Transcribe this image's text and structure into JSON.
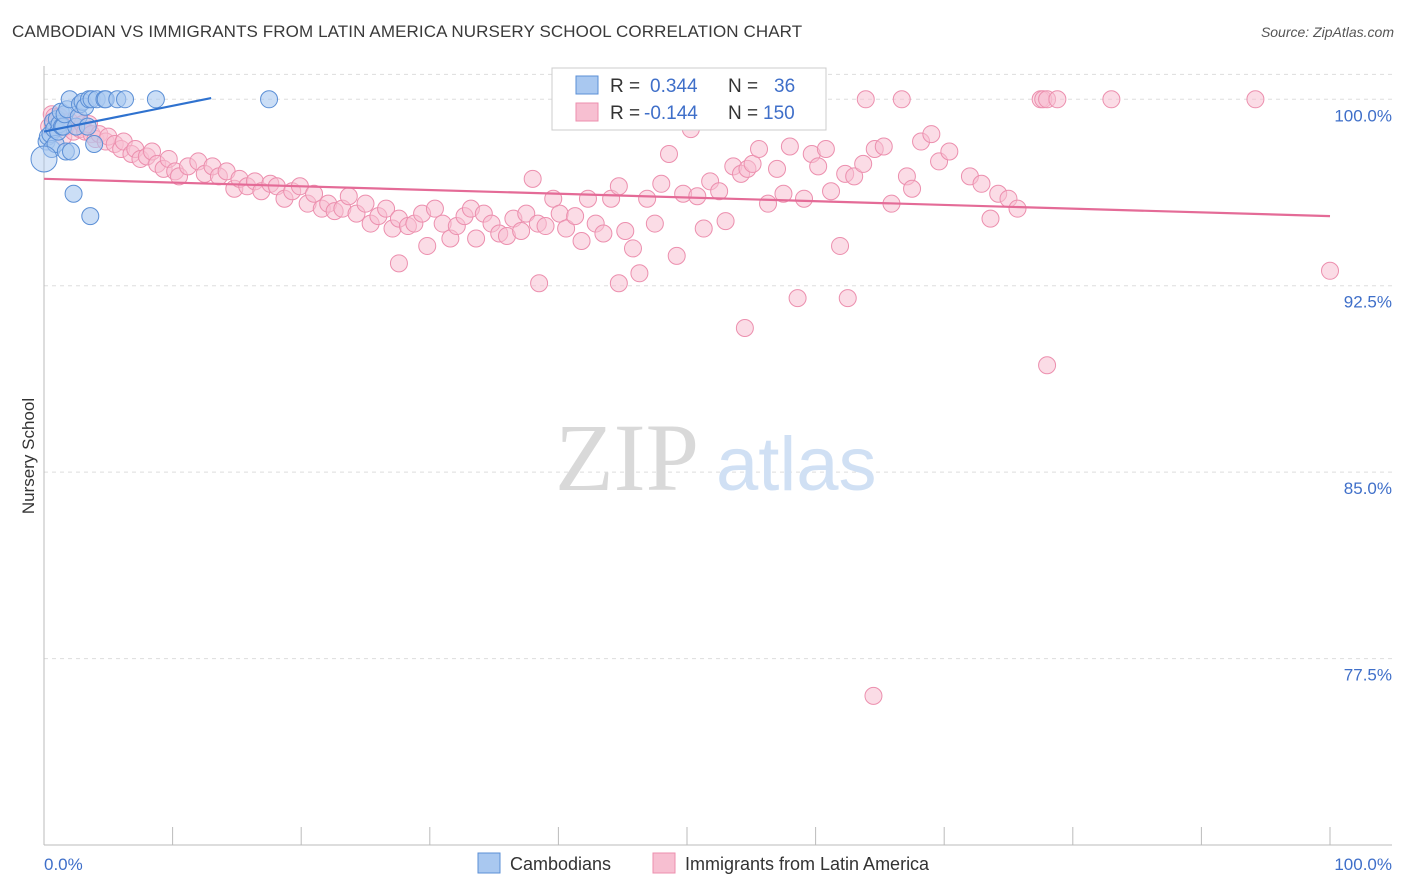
{
  "title": "CAMBODIAN VS IMMIGRANTS FROM LATIN AMERICA NURSERY SCHOOL CORRELATION CHART",
  "source": "Source: ZipAtlas.com",
  "watermark": {
    "zip": "ZIP",
    "atlas": "atlas"
  },
  "colors": {
    "blue_fill": "#a9c8f0",
    "blue_stroke": "#5b8fd6",
    "blue_line": "#2f72cf",
    "pink_fill": "#f7bfd1",
    "pink_stroke": "#ec8fae",
    "pink_line": "#e46b97",
    "tick_text": "#3f6fc9",
    "grid": "#dddddd"
  },
  "legend_box": {
    "rows": [
      {
        "r_label": "R =",
        "r_value": "0.344",
        "n_label": "N =",
        "n_value": "36"
      },
      {
        "r_label": "R =",
        "r_value": "-0.144",
        "n_label": "N =",
        "n_value": "150"
      }
    ]
  },
  "chart_data": {
    "type": "scatter",
    "title": "CAMBODIAN VS IMMIGRANTS FROM LATIN AMERICA NURSERY SCHOOL CORRELATION CHART",
    "xlabel": "",
    "ylabel": "Nursery School",
    "xlim": [
      0,
      100
    ],
    "ylim": [
      70.0,
      101.5
    ],
    "x_tick_labels": [
      "0.0%",
      "100.0%"
    ],
    "y_ticks": [
      100.0,
      92.5,
      85.0,
      77.5
    ],
    "y_tick_labels": [
      "100.0%",
      "92.5%",
      "85.0%",
      "77.5%"
    ],
    "grid": true,
    "legend": [
      "Cambodians",
      "Immigrants from Latin America"
    ],
    "series": [
      {
        "name": "Cambodians",
        "R": 0.344,
        "N": 36,
        "trend": {
          "x": [
            0,
            13
          ],
          "y": [
            98.7,
            100.05
          ]
        },
        "points": [
          [
            0.2,
            98.3
          ],
          [
            0.3,
            98.5
          ],
          [
            0.5,
            98.6
          ],
          [
            0.6,
            98.0
          ],
          [
            0.7,
            99.1
          ],
          [
            0.8,
            98.8
          ],
          [
            0.9,
            98.2
          ],
          [
            1.0,
            99.2
          ],
          [
            1.1,
            98.7
          ],
          [
            1.2,
            99.0
          ],
          [
            1.3,
            99.5
          ],
          [
            1.4,
            98.9
          ],
          [
            1.5,
            98.9
          ],
          [
            1.6,
            99.4
          ],
          [
            1.7,
            97.9
          ],
          [
            1.8,
            99.6
          ],
          [
            2.0,
            100.0
          ],
          [
            2.1,
            97.9
          ],
          [
            2.3,
            96.2
          ],
          [
            2.5,
            98.9
          ],
          [
            2.7,
            99.3
          ],
          [
            2.8,
            99.8
          ],
          [
            3.0,
            99.9
          ],
          [
            3.2,
            99.7
          ],
          [
            3.4,
            98.9
          ],
          [
            3.5,
            100.0
          ],
          [
            3.6,
            95.3
          ],
          [
            3.7,
            100.0
          ],
          [
            3.9,
            98.2
          ],
          [
            4.1,
            100.0
          ],
          [
            4.7,
            100.0
          ],
          [
            4.8,
            100.0
          ],
          [
            5.7,
            100.0
          ],
          [
            6.3,
            100.0
          ],
          [
            8.7,
            100.0
          ],
          [
            17.5,
            100.0
          ]
        ]
      },
      {
        "name": "Immigrants from Latin America",
        "R": -0.144,
        "N": 150,
        "trend": {
          "x": [
            0,
            100
          ],
          "y": [
            96.8,
            95.3
          ]
        },
        "points": [
          [
            0.4,
            98.9
          ],
          [
            0.6,
            99.4
          ],
          [
            0.7,
            99.0
          ],
          [
            0.8,
            99.3
          ],
          [
            1.0,
            98.8
          ],
          [
            1.2,
            99.3
          ],
          [
            1.4,
            99.1
          ],
          [
            1.5,
            98.5
          ],
          [
            1.7,
            98.9
          ],
          [
            2.0,
            99.1
          ],
          [
            2.3,
            98.7
          ],
          [
            2.5,
            99.2
          ],
          [
            2.8,
            98.8
          ],
          [
            3.0,
            99.0
          ],
          [
            3.2,
            98.7
          ],
          [
            3.5,
            99.0
          ],
          [
            3.7,
            98.6
          ],
          [
            4.0,
            98.4
          ],
          [
            4.3,
            98.6
          ],
          [
            4.8,
            98.3
          ],
          [
            5.0,
            98.5
          ],
          [
            5.5,
            98.2
          ],
          [
            6.0,
            98.0
          ],
          [
            6.2,
            98.3
          ],
          [
            6.8,
            97.8
          ],
          [
            7.1,
            98.0
          ],
          [
            7.5,
            97.6
          ],
          [
            8.0,
            97.7
          ],
          [
            8.4,
            97.9
          ],
          [
            8.8,
            97.4
          ],
          [
            9.3,
            97.2
          ],
          [
            9.7,
            97.6
          ],
          [
            10.2,
            97.1
          ],
          [
            10.5,
            96.9
          ],
          [
            11.2,
            97.3
          ],
          [
            12.0,
            97.5
          ],
          [
            12.5,
            97.0
          ],
          [
            13.1,
            97.3
          ],
          [
            13.6,
            96.9
          ],
          [
            14.2,
            97.1
          ],
          [
            14.8,
            96.4
          ],
          [
            15.2,
            96.8
          ],
          [
            15.8,
            96.5
          ],
          [
            16.4,
            96.7
          ],
          [
            16.9,
            96.3
          ],
          [
            17.6,
            96.6
          ],
          [
            18.1,
            96.5
          ],
          [
            18.7,
            96.0
          ],
          [
            19.3,
            96.3
          ],
          [
            19.9,
            96.5
          ],
          [
            20.5,
            95.8
          ],
          [
            21.0,
            96.2
          ],
          [
            21.6,
            95.6
          ],
          [
            22.1,
            95.8
          ],
          [
            22.6,
            95.5
          ],
          [
            23.2,
            95.6
          ],
          [
            23.7,
            96.1
          ],
          [
            24.3,
            95.4
          ],
          [
            25.0,
            95.8
          ],
          [
            25.4,
            95.0
          ],
          [
            26.0,
            95.3
          ],
          [
            26.6,
            95.6
          ],
          [
            27.1,
            94.8
          ],
          [
            27.6,
            95.2
          ],
          [
            28.3,
            94.9
          ],
          [
            28.8,
            95.0
          ],
          [
            29.4,
            95.4
          ],
          [
            29.8,
            94.1
          ],
          [
            30.4,
            95.6
          ],
          [
            31.0,
            95.0
          ],
          [
            31.6,
            94.4
          ],
          [
            32.1,
            94.9
          ],
          [
            32.7,
            95.3
          ],
          [
            33.2,
            95.6
          ],
          [
            33.6,
            94.4
          ],
          [
            34.2,
            95.4
          ],
          [
            34.8,
            95.0
          ],
          [
            35.4,
            94.6
          ],
          [
            36.0,
            94.5
          ],
          [
            36.5,
            95.2
          ],
          [
            37.1,
            94.7
          ],
          [
            37.5,
            95.4
          ],
          [
            38.0,
            96.8
          ],
          [
            38.4,
            95.0
          ],
          [
            39.0,
            94.9
          ],
          [
            39.6,
            96.0
          ],
          [
            40.1,
            95.4
          ],
          [
            40.6,
            94.8
          ],
          [
            41.3,
            95.3
          ],
          [
            41.8,
            94.3
          ],
          [
            42.3,
            96.0
          ],
          [
            42.9,
            95.0
          ],
          [
            43.5,
            94.6
          ],
          [
            44.1,
            96.0
          ],
          [
            44.7,
            96.5
          ],
          [
            45.2,
            94.7
          ],
          [
            45.8,
            94.0
          ],
          [
            46.3,
            93.0
          ],
          [
            46.9,
            96.0
          ],
          [
            47.5,
            95.0
          ],
          [
            48.0,
            96.6
          ],
          [
            48.6,
            97.8
          ],
          [
            49.2,
            93.7
          ],
          [
            49.7,
            96.2
          ],
          [
            50.3,
            98.8
          ],
          [
            50.8,
            96.1
          ],
          [
            51.3,
            94.8
          ],
          [
            51.8,
            96.7
          ],
          [
            52.5,
            96.3
          ],
          [
            53.0,
            95.1
          ],
          [
            53.6,
            97.3
          ],
          [
            54.2,
            97.0
          ],
          [
            54.7,
            97.2
          ],
          [
            55.1,
            97.4
          ],
          [
            55.6,
            98.0
          ],
          [
            56.3,
            95.8
          ],
          [
            57.0,
            97.2
          ],
          [
            57.5,
            96.2
          ],
          [
            58.0,
            98.1
          ],
          [
            58.6,
            92.0
          ],
          [
            59.1,
            96.0
          ],
          [
            59.7,
            97.8
          ],
          [
            60.2,
            97.3
          ],
          [
            60.8,
            98.0
          ],
          [
            61.2,
            96.3
          ],
          [
            61.9,
            94.1
          ],
          [
            62.3,
            97.0
          ],
          [
            63.0,
            96.9
          ],
          [
            63.7,
            97.4
          ],
          [
            63.9,
            100.0
          ],
          [
            64.6,
            98.0
          ],
          [
            65.3,
            98.1
          ],
          [
            65.9,
            95.8
          ],
          [
            66.7,
            100.0
          ],
          [
            67.1,
            96.9
          ],
          [
            67.5,
            96.4
          ],
          [
            68.2,
            98.3
          ],
          [
            69.0,
            98.6
          ],
          [
            69.6,
            97.5
          ],
          [
            70.4,
            97.9
          ],
          [
            72.0,
            96.9
          ],
          [
            72.9,
            96.6
          ],
          [
            73.6,
            95.2
          ],
          [
            74.2,
            96.2
          ],
          [
            75.0,
            96.0
          ],
          [
            75.7,
            95.6
          ],
          [
            77.5,
            100.0
          ],
          [
            77.7,
            100.0
          ],
          [
            78.0,
            100.0
          ],
          [
            78.8,
            100.0
          ],
          [
            83.0,
            100.0
          ],
          [
            94.2,
            100.0
          ],
          [
            54.5,
            90.8
          ],
          [
            62.5,
            92.0
          ],
          [
            78.0,
            89.3
          ],
          [
            64.5,
            76.0
          ],
          [
            100.0,
            93.1
          ],
          [
            38.5,
            92.6
          ],
          [
            44.7,
            92.6
          ],
          [
            27.6,
            93.4
          ]
        ]
      }
    ]
  },
  "x_labels": {
    "left": "0.0%",
    "right": "100.0%"
  }
}
